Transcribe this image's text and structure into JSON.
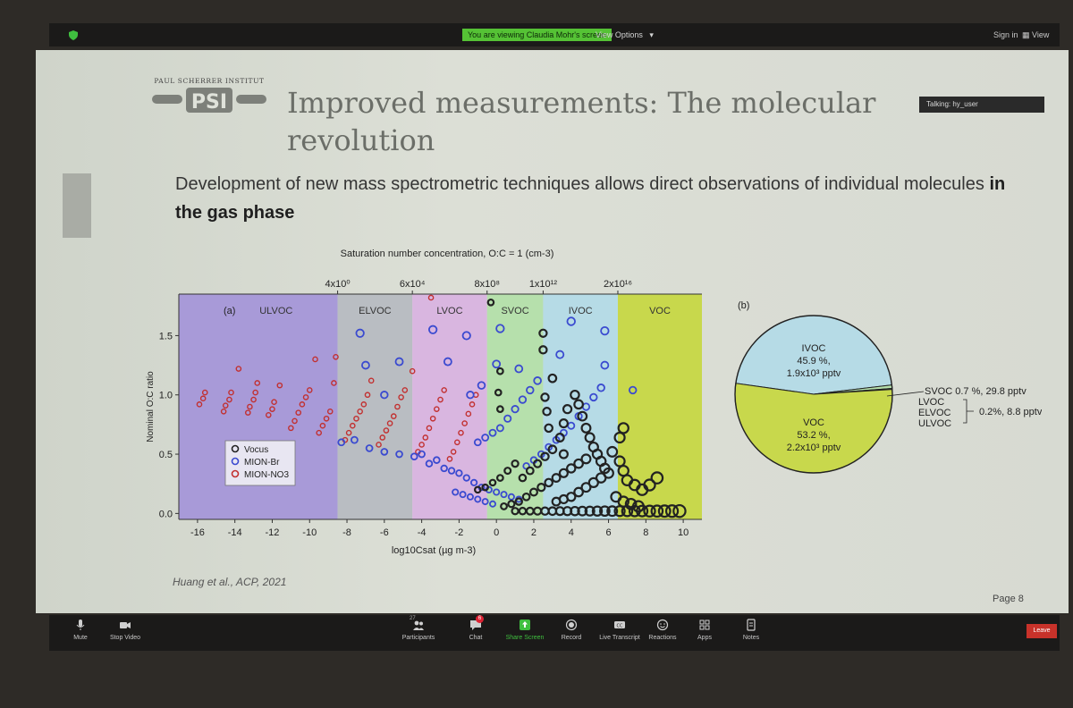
{
  "topbar": {
    "viewing_label": "You are viewing Claudia Mohr's screen",
    "view_options": "View Options",
    "sign_in": "Sign in",
    "view": "View"
  },
  "slide": {
    "logo_text": "PAUL SCHERRER INSTITUT",
    "logo_letters": "PSI",
    "title": "Improved measurements: The molecular revolution",
    "talking": "Talking: hy_user",
    "subtitle_plain": "Development of new mass spectrometric techniques allows direct observations of individual molecules ",
    "subtitle_bold": "in the gas phase",
    "citation": "Huang et al., ACP, 2021",
    "page": "Page 8"
  },
  "chart_data": [
    {
      "type": "scatter",
      "panel_label": "(a)",
      "xlabel": "log10Csat (µg m-3)",
      "ylabel": "Nominal O:C ratio",
      "top_axis_label": "Saturation number concentration, O:C = 1 (cm-3)",
      "xlim": [
        -17,
        11
      ],
      "ylim": [
        -0.05,
        1.85
      ],
      "x_ticks": [
        -16,
        -14,
        -12,
        -10,
        -8,
        -6,
        -4,
        -2,
        0,
        2,
        4,
        6,
        8,
        10
      ],
      "y_ticks": [
        0.0,
        0.5,
        1.0,
        1.5
      ],
      "y_tick_labels": [
        "0.0",
        "0.5",
        "1.0",
        "1.5"
      ],
      "top_ticks": [
        {
          "x": -8.5,
          "label": "4x10⁰"
        },
        {
          "x": -4.5,
          "label": "6x10⁴"
        },
        {
          "x": -0.5,
          "label": "8x10⁸"
        },
        {
          "x": 2.5,
          "label": "1x10¹²"
        },
        {
          "x": 6.5,
          "label": "2x10¹⁶"
        }
      ],
      "regions": [
        {
          "name": "ULVOC",
          "from": -17,
          "to": -8.5,
          "color": "#a89ad8"
        },
        {
          "name": "ELVOC",
          "from": -8.5,
          "to": -4.5,
          "color": "#b9bdc2"
        },
        {
          "name": "LVOC",
          "from": -4.5,
          "to": -0.5,
          "color": "#d9b6e0"
        },
        {
          "name": "SVOC",
          "from": -0.5,
          "to": 2.5,
          "color": "#b6e0ac"
        },
        {
          "name": "IVOC",
          "from": 2.5,
          "to": 6.5,
          "color": "#b6dbe6"
        },
        {
          "name": "VOC",
          "from": 6.5,
          "to": 11,
          "color": "#c8d84c"
        }
      ],
      "legend": [
        "Vocus",
        "MION-Br",
        "MION-NO3"
      ],
      "series": [
        {
          "name": "MION-NO3",
          "color": "#c23030",
          "points": [
            [
              -15.9,
              0.92
            ],
            [
              -15.7,
              0.97
            ],
            [
              -15.6,
              1.02
            ],
            [
              -14.6,
              0.86
            ],
            [
              -14.5,
              0.91
            ],
            [
              -14.3,
              0.96
            ],
            [
              -14.2,
              1.02
            ],
            [
              -13.8,
              1.22
            ],
            [
              -13.3,
              0.85
            ],
            [
              -13.2,
              0.9
            ],
            [
              -13.0,
              0.96
            ],
            [
              -12.9,
              1.02
            ],
            [
              -12.8,
              1.1
            ],
            [
              -12.2,
              0.83
            ],
            [
              -12.0,
              0.88
            ],
            [
              -11.9,
              0.94
            ],
            [
              -11.6,
              1.08
            ],
            [
              -11.0,
              0.72
            ],
            [
              -10.8,
              0.78
            ],
            [
              -10.6,
              0.85
            ],
            [
              -10.4,
              0.92
            ],
            [
              -10.2,
              0.98
            ],
            [
              -10.0,
              1.04
            ],
            [
              -9.7,
              1.3
            ],
            [
              -9.5,
              0.68
            ],
            [
              -9.3,
              0.74
            ],
            [
              -9.1,
              0.8
            ],
            [
              -8.9,
              0.86
            ],
            [
              -8.7,
              1.1
            ],
            [
              -8.6,
              1.32
            ],
            [
              -8.1,
              0.62
            ],
            [
              -7.9,
              0.68
            ],
            [
              -7.7,
              0.74
            ],
            [
              -7.5,
              0.8
            ],
            [
              -7.3,
              0.86
            ],
            [
              -7.1,
              0.92
            ],
            [
              -6.9,
              1.0
            ],
            [
              -6.7,
              1.12
            ],
            [
              -6.3,
              0.58
            ],
            [
              -6.1,
              0.64
            ],
            [
              -5.9,
              0.7
            ],
            [
              -5.7,
              0.76
            ],
            [
              -5.5,
              0.82
            ],
            [
              -5.3,
              0.9
            ],
            [
              -5.1,
              0.98
            ],
            [
              -4.9,
              1.04
            ],
            [
              -4.5,
              1.2
            ],
            [
              -4.2,
              0.52
            ],
            [
              -4.0,
              0.58
            ],
            [
              -3.8,
              0.64
            ],
            [
              -3.6,
              0.72
            ],
            [
              -3.4,
              0.8
            ],
            [
              -3.2,
              0.88
            ],
            [
              -3.0,
              0.96
            ],
            [
              -2.8,
              1.04
            ],
            [
              -2.5,
              0.46
            ],
            [
              -2.3,
              0.52
            ],
            [
              -2.1,
              0.6
            ],
            [
              -1.9,
              0.68
            ],
            [
              -1.7,
              0.76
            ],
            [
              -1.5,
              0.84
            ],
            [
              -1.3,
              0.92
            ],
            [
              -1.1,
              1.0
            ],
            [
              -3.5,
              1.82
            ]
          ]
        },
        {
          "name": "MION-Br",
          "color": "#3a4ad0",
          "points": [
            [
              -7.0,
              1.25
            ],
            [
              -7.3,
              1.52
            ],
            [
              -6.0,
              1.0
            ],
            [
              -5.2,
              1.28
            ],
            [
              -3.4,
              1.55
            ],
            [
              -2.6,
              1.28
            ],
            [
              -1.6,
              1.5
            ],
            [
              -8.3,
              0.6
            ],
            [
              -7.6,
              0.62
            ],
            [
              -6.8,
              0.55
            ],
            [
              -6.0,
              0.52
            ],
            [
              -5.2,
              0.5
            ],
            [
              -4.4,
              0.48
            ],
            [
              -4.0,
              0.5
            ],
            [
              -3.6,
              0.42
            ],
            [
              -3.2,
              0.45
            ],
            [
              -2.8,
              0.38
            ],
            [
              -2.4,
              0.36
            ],
            [
              -2.0,
              0.34
            ],
            [
              -1.6,
              0.3
            ],
            [
              -1.2,
              0.26
            ],
            [
              -0.8,
              0.22
            ],
            [
              -0.4,
              0.2
            ],
            [
              0.0,
              0.18
            ],
            [
              0.4,
              0.16
            ],
            [
              0.8,
              0.14
            ],
            [
              1.2,
              0.12
            ],
            [
              -1.0,
              0.6
            ],
            [
              -0.6,
              0.64
            ],
            [
              -0.2,
              0.68
            ],
            [
              0.2,
              0.72
            ],
            [
              0.6,
              0.8
            ],
            [
              1.0,
              0.88
            ],
            [
              1.4,
              0.96
            ],
            [
              1.8,
              1.04
            ],
            [
              2.2,
              1.12
            ],
            [
              -2.2,
              0.18
            ],
            [
              -1.8,
              0.16
            ],
            [
              -1.4,
              0.14
            ],
            [
              -1.0,
              0.12
            ],
            [
              -0.6,
              0.1
            ],
            [
              -0.2,
              0.08
            ],
            [
              1.6,
              0.4
            ],
            [
              2.0,
              0.45
            ],
            [
              2.4,
              0.5
            ],
            [
              2.8,
              0.56
            ],
            [
              3.2,
              0.62
            ],
            [
              3.6,
              0.68
            ],
            [
              4.0,
              0.74
            ],
            [
              4.4,
              0.82
            ],
            [
              4.8,
              0.9
            ],
            [
              5.2,
              0.98
            ],
            [
              5.6,
              1.06
            ],
            [
              5.8,
              1.25
            ],
            [
              5.8,
              1.54
            ],
            [
              4.0,
              1.62
            ],
            [
              1.2,
              1.22
            ],
            [
              3.4,
              1.34
            ],
            [
              7.3,
              1.04
            ],
            [
              0.2,
              1.56
            ],
            [
              -1.4,
              1.0
            ],
            [
              -0.8,
              1.08
            ],
            [
              0.0,
              1.26
            ]
          ]
        },
        {
          "name": "Vocus",
          "color": "#222222",
          "points": [
            [
              -0.3,
              1.78
            ],
            [
              0.2,
              1.2
            ],
            [
              0.1,
              1.02
            ],
            [
              0.2,
              0.88
            ],
            [
              2.5,
              1.52
            ],
            [
              2.5,
              1.38
            ],
            [
              2.6,
              0.98
            ],
            [
              2.7,
              0.86
            ],
            [
              2.8,
              0.72
            ],
            [
              3.0,
              1.14
            ],
            [
              3.4,
              0.64
            ],
            [
              3.6,
              0.76
            ],
            [
              3.8,
              0.88
            ],
            [
              4.2,
              1.0
            ],
            [
              4.4,
              0.92
            ],
            [
              4.6,
              0.82
            ],
            [
              4.8,
              0.72
            ],
            [
              5.0,
              0.64
            ],
            [
              5.2,
              0.56
            ],
            [
              5.4,
              0.5
            ],
            [
              5.6,
              0.44
            ],
            [
              5.8,
              0.38
            ],
            [
              6.2,
              0.52
            ],
            [
              6.6,
              0.64
            ],
            [
              6.8,
              0.72
            ],
            [
              6.6,
              0.44
            ],
            [
              6.8,
              0.36
            ],
            [
              7.0,
              0.28
            ],
            [
              7.4,
              0.24
            ],
            [
              7.8,
              0.2
            ],
            [
              8.2,
              0.24
            ],
            [
              8.6,
              0.3
            ],
            [
              1.0,
              0.02
            ],
            [
              1.4,
              0.02
            ],
            [
              1.8,
              0.02
            ],
            [
              2.2,
              0.02
            ],
            [
              2.6,
              0.02
            ],
            [
              3.0,
              0.02
            ],
            [
              3.4,
              0.02
            ],
            [
              3.8,
              0.02
            ],
            [
              4.2,
              0.02
            ],
            [
              4.6,
              0.02
            ],
            [
              5.0,
              0.02
            ],
            [
              5.4,
              0.02
            ],
            [
              5.8,
              0.02
            ],
            [
              6.2,
              0.02
            ],
            [
              6.6,
              0.02
            ],
            [
              7.0,
              0.02
            ],
            [
              7.4,
              0.02
            ],
            [
              7.8,
              0.02
            ],
            [
              8.2,
              0.02
            ],
            [
              8.6,
              0.02
            ],
            [
              9.0,
              0.02
            ],
            [
              9.4,
              0.02
            ],
            [
              9.8,
              0.02
            ],
            [
              1.2,
              0.1
            ],
            [
              1.6,
              0.14
            ],
            [
              2.0,
              0.18
            ],
            [
              2.4,
              0.22
            ],
            [
              2.8,
              0.26
            ],
            [
              3.2,
              0.3
            ],
            [
              3.6,
              0.34
            ],
            [
              4.0,
              0.38
            ],
            [
              4.4,
              0.42
            ],
            [
              4.8,
              0.46
            ],
            [
              1.4,
              0.3
            ],
            [
              1.8,
              0.36
            ],
            [
              2.2,
              0.42
            ],
            [
              2.6,
              0.48
            ],
            [
              3.0,
              0.54
            ],
            [
              0.4,
              0.06
            ],
            [
              0.8,
              0.08
            ],
            [
              3.2,
              0.1
            ],
            [
              3.6,
              0.12
            ],
            [
              4.0,
              0.14
            ],
            [
              4.4,
              0.18
            ],
            [
              4.8,
              0.22
            ],
            [
              5.2,
              0.26
            ],
            [
              5.6,
              0.3
            ],
            [
              6.0,
              0.34
            ],
            [
              6.4,
              0.14
            ],
            [
              6.8,
              0.1
            ],
            [
              7.2,
              0.08
            ],
            [
              7.6,
              0.06
            ],
            [
              1.0,
              0.42
            ],
            [
              0.6,
              0.36
            ],
            [
              0.2,
              0.3
            ],
            [
              -0.2,
              0.26
            ],
            [
              -0.6,
              0.22
            ],
            [
              -1.0,
              0.2
            ],
            [
              3.6,
              0.5
            ]
          ]
        }
      ]
    },
    {
      "type": "pie",
      "panel_label": "(b)",
      "slices": [
        {
          "name": "IVOC",
          "value": 45.9,
          "label": "IVOC",
          "line2": "45.9 %,",
          "line3": "1.9x10³ pptv",
          "color": "#b6dbe6"
        },
        {
          "name": "SVOC",
          "value": 0.7,
          "label": "SVOC 0.7 %, 29.8 pptv",
          "color": "#b6e0ac"
        },
        {
          "name": "LVOC+ELVOC+ULVOC",
          "value": 0.2,
          "labels": [
            "LVOC",
            "ELVOC",
            "ULVOC"
          ],
          "note": "0.2%, 8.8 pptv",
          "color": "#d9b6e0"
        },
        {
          "name": "VOC",
          "value": 53.2,
          "label": "VOC",
          "line2": "53.2 %,",
          "line3": "2.2x10³ pptv",
          "color": "#c8d84c"
        }
      ]
    }
  ],
  "toolbar": {
    "mute": "Mute",
    "stop_video": "Stop Video",
    "participants": "Participants",
    "participants_count": "27",
    "chat": "Chat",
    "chat_badge": "6",
    "share_screen": "Share Screen",
    "record": "Record",
    "live_transcript": "Live Transcript",
    "reactions": "Reactions",
    "apps": "Apps",
    "notes": "Notes",
    "leave": "Leave"
  },
  "colors": {
    "accent_green": "#55c235",
    "leave_red": "#c8322a",
    "toolbar_bg": "#1b1a19"
  }
}
